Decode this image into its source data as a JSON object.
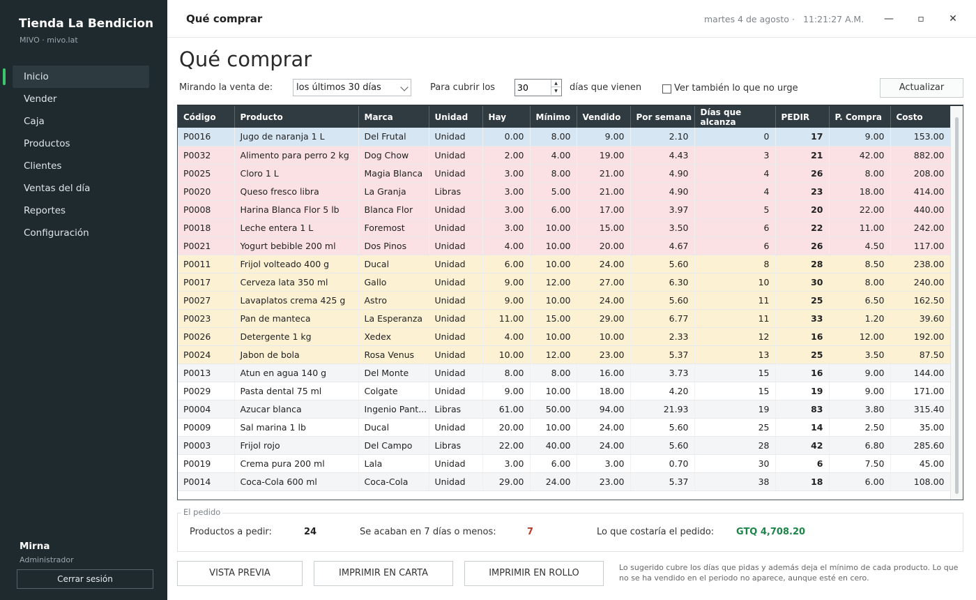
{
  "sidebar": {
    "brand": "Tienda La Bendicion",
    "brand_sub": "MIVO · mivo.lat",
    "items": [
      {
        "label": "Inicio",
        "active": true
      },
      {
        "label": "Vender"
      },
      {
        "label": "Caja"
      },
      {
        "label": "Productos"
      },
      {
        "label": "Clientes"
      },
      {
        "label": "Ventas del día"
      },
      {
        "label": "Reportes"
      },
      {
        "label": "Configuración"
      }
    ],
    "user": "Mirna",
    "role": "Administrador",
    "logout": "Cerrar sesión"
  },
  "topbar": {
    "title": "Qué comprar",
    "date": "martes 4 de agosto",
    "separator": "·",
    "time": "11:21:27 A.M.",
    "minimize": "—",
    "maximize": "▫",
    "close": "✕"
  },
  "page": {
    "title": "Qué comprar",
    "looking_label": "Mirando la venta de:",
    "range_value": "los últimos 30 días",
    "cover_label": "Para cubrir los",
    "days_value": "30",
    "days_suffix": "días que vienen",
    "show_all_label": "Ver también lo que no urge",
    "update_button": "Actualizar"
  },
  "table": {
    "columns": [
      "Código",
      "Producto",
      "Marca",
      "Unidad",
      "Hay",
      "Mínimo",
      "Vendido",
      "Por semana",
      "Días que alcanza",
      "PEDIR",
      "P. Compra",
      "Costo"
    ],
    "rows": [
      {
        "u": "select",
        "c": [
          "P0016",
          "Jugo de naranja 1 L",
          "Del Frutal",
          "Unidad",
          "0.00",
          "8.00",
          "9.00",
          "2.10",
          "0",
          "17",
          "9.00",
          "153.00"
        ]
      },
      {
        "u": "high",
        "c": [
          "P0032",
          "Alimento para perro 2 kg",
          "Dog Chow",
          "Unidad",
          "2.00",
          "4.00",
          "19.00",
          "4.43",
          "3",
          "21",
          "42.00",
          "882.00"
        ]
      },
      {
        "u": "high",
        "c": [
          "P0025",
          "Cloro 1 L",
          "Magia Blanca",
          "Unidad",
          "3.00",
          "8.00",
          "21.00",
          "4.90",
          "4",
          "26",
          "8.00",
          "208.00"
        ]
      },
      {
        "u": "high",
        "c": [
          "P0020",
          "Queso fresco libra",
          "La Granja",
          "Libras",
          "3.00",
          "5.00",
          "21.00",
          "4.90",
          "4",
          "23",
          "18.00",
          "414.00"
        ]
      },
      {
        "u": "high",
        "c": [
          "P0008",
          "Harina Blanca Flor 5 lb",
          "Blanca Flor",
          "Unidad",
          "3.00",
          "6.00",
          "17.00",
          "3.97",
          "5",
          "20",
          "22.00",
          "440.00"
        ]
      },
      {
        "u": "high",
        "c": [
          "P0018",
          "Leche entera 1 L",
          "Foremost",
          "Unidad",
          "3.00",
          "10.00",
          "15.00",
          "3.50",
          "6",
          "22",
          "11.00",
          "242.00"
        ]
      },
      {
        "u": "high",
        "c": [
          "P0021",
          "Yogurt bebible 200 ml",
          "Dos Pinos",
          "Unidad",
          "4.00",
          "10.00",
          "20.00",
          "4.67",
          "6",
          "26",
          "4.50",
          "117.00"
        ]
      },
      {
        "u": "mid",
        "c": [
          "P0011",
          "Frijol volteado 400 g",
          "Ducal",
          "Unidad",
          "6.00",
          "10.00",
          "24.00",
          "5.60",
          "8",
          "28",
          "8.50",
          "238.00"
        ]
      },
      {
        "u": "mid",
        "c": [
          "P0017",
          "Cerveza lata 350 ml",
          "Gallo",
          "Unidad",
          "9.00",
          "12.00",
          "27.00",
          "6.30",
          "10",
          "30",
          "8.00",
          "240.00"
        ]
      },
      {
        "u": "mid",
        "c": [
          "P0027",
          "Lavaplatos crema 425 g",
          "Astro",
          "Unidad",
          "9.00",
          "10.00",
          "24.00",
          "5.60",
          "11",
          "25",
          "6.50",
          "162.50"
        ]
      },
      {
        "u": "mid",
        "c": [
          "P0023",
          "Pan de manteca",
          "La Esperanza",
          "Unidad",
          "11.00",
          "15.00",
          "29.00",
          "6.77",
          "11",
          "33",
          "1.20",
          "39.60"
        ]
      },
      {
        "u": "mid",
        "c": [
          "P0026",
          "Detergente 1 kg",
          "Xedex",
          "Unidad",
          "4.00",
          "10.00",
          "10.00",
          "2.33",
          "12",
          "16",
          "12.00",
          "192.00"
        ]
      },
      {
        "u": "mid",
        "c": [
          "P0024",
          "Jabon de bola",
          "Rosa Venus",
          "Unidad",
          "10.00",
          "12.00",
          "23.00",
          "5.37",
          "13",
          "25",
          "3.50",
          "87.50"
        ]
      },
      {
        "u": "low",
        "c": [
          "P0013",
          "Atun en agua 140 g",
          "Del Monte",
          "Unidad",
          "8.00",
          "8.00",
          "16.00",
          "3.73",
          "15",
          "16",
          "9.00",
          "144.00"
        ]
      },
      {
        "u": "none",
        "c": [
          "P0029",
          "Pasta dental 75 ml",
          "Colgate",
          "Unidad",
          "9.00",
          "10.00",
          "18.00",
          "4.20",
          "15",
          "19",
          "9.00",
          "171.00"
        ]
      },
      {
        "u": "low",
        "c": [
          "P0004",
          "Azucar blanca",
          "Ingenio Pant...",
          "Libras",
          "61.00",
          "50.00",
          "94.00",
          "21.93",
          "19",
          "83",
          "3.80",
          "315.40"
        ]
      },
      {
        "u": "none",
        "c": [
          "P0009",
          "Sal marina 1 lb",
          "Ducal",
          "Unidad",
          "20.00",
          "10.00",
          "24.00",
          "5.60",
          "25",
          "14",
          "2.50",
          "35.00"
        ]
      },
      {
        "u": "low",
        "c": [
          "P0003",
          "Frijol rojo",
          "Del Campo",
          "Libras",
          "22.00",
          "40.00",
          "24.00",
          "5.60",
          "28",
          "42",
          "6.80",
          "285.60"
        ]
      },
      {
        "u": "none",
        "c": [
          "P0019",
          "Crema pura 200 ml",
          "Lala",
          "Unidad",
          "3.00",
          "6.00",
          "3.00",
          "0.70",
          "30",
          "6",
          "7.50",
          "45.00"
        ]
      },
      {
        "u": "low",
        "c": [
          "P0014",
          "Coca-Cola 600 ml",
          "Coca-Cola",
          "Unidad",
          "29.00",
          "24.00",
          "23.00",
          "5.37",
          "38",
          "18",
          "6.00",
          "108.00"
        ]
      }
    ]
  },
  "summary": {
    "legend": "El pedido",
    "products_label": "Productos a pedir:",
    "products_value": "24",
    "ending_label": "Se acaban en 7 días o menos:",
    "ending_value": "7",
    "cost_label": "Lo que costaría el pedido:",
    "cost_value": "GTQ 4,708.20"
  },
  "actions": {
    "preview": "VISTA PREVIA",
    "print_letter": "IMPRIMIR EN CARTA",
    "print_roll": "IMPRIMIR EN ROLLO",
    "note": "Lo sugerido cubre los días que pidas y además deja el mínimo de cada producto. Lo que no se ha vendido en el periodo no aparece, aunque esté en cero."
  },
  "colors": {
    "accent": "#3ec46d",
    "sidebar": "#1f2a2e",
    "header": "#2f3b40",
    "urgent": "#fbe1e3",
    "warning": "#fdf1d4",
    "selected": "#d6e6f3",
    "ending_value": "#c0392b",
    "cost_value": "#1e8449"
  }
}
